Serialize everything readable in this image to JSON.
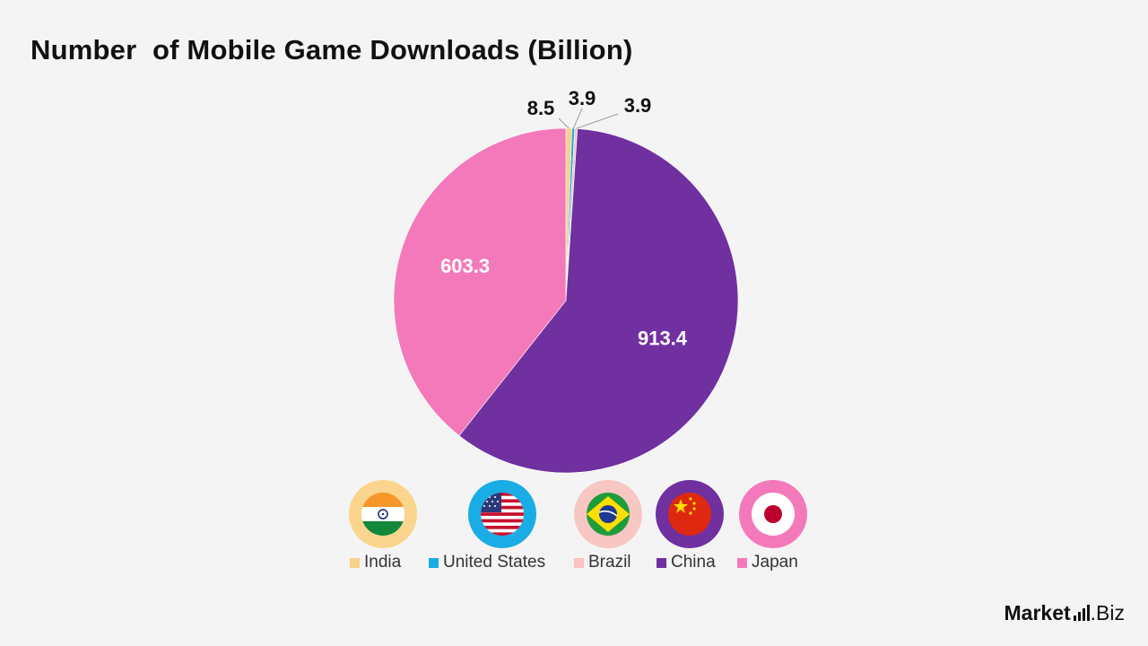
{
  "chart_data": {
    "type": "pie",
    "title": "Number  of Mobile Game Downloads (Billion)",
    "categories": [
      "India",
      "United States",
      "Brazil",
      "China",
      "Japan"
    ],
    "values": [
      8.5,
      3.9,
      3.9,
      913.4,
      603.3
    ],
    "value_labels": [
      "8.5",
      "3.9",
      "3.9",
      "913.4",
      "603.3"
    ],
    "colors": [
      "#f9d08a",
      "#1aace4",
      "#f8c3c0",
      "#7030a0",
      "#f479bb"
    ],
    "legend_position": "bottom"
  },
  "flags": [
    {
      "country": "India",
      "icon": "india-flag-icon",
      "ring_color": "#fbd58e"
    },
    {
      "country": "United States",
      "icon": "usa-flag-icon",
      "ring_color": "#1aace4"
    },
    {
      "country": "Brazil",
      "icon": "brazil-flag-icon",
      "ring_color": "#f8c6c3"
    },
    {
      "country": "China",
      "icon": "china-flag-icon",
      "ring_color": "#7030a0"
    },
    {
      "country": "Japan",
      "icon": "japan-flag-icon",
      "ring_color": "#f479bb"
    }
  ],
  "brand": {
    "name": "Market",
    "suffix": ".Biz"
  }
}
